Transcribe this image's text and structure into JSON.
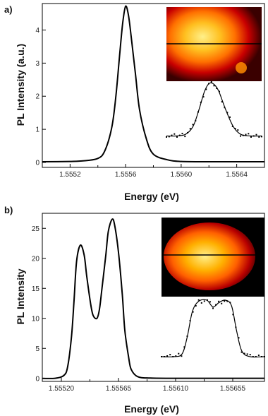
{
  "chart_data": [
    {
      "panel_label": "a)",
      "type": "line",
      "xlabel": "Energy (eV)",
      "ylabel": "PL Intensity (a.u.)",
      "xlim": [
        1.555,
        1.5566
      ],
      "ylim": [
        -0.15,
        4.8
      ],
      "xticks": [
        1.5552,
        1.5556,
        1.556,
        1.5564
      ],
      "xtick_labels": [
        "1.5552",
        "1.5556",
        "1.5560",
        "1.5564"
      ],
      "yticks": [
        0,
        1,
        2,
        3,
        4
      ],
      "ytick_labels": [
        "0",
        "1",
        "2",
        "3",
        "4"
      ],
      "series": [
        {
          "x": [
            1.555,
            1.5552,
            1.5553,
            1.5554,
            1.55545,
            1.5555,
            1.55553,
            1.55556,
            1.55558,
            1.5556,
            1.55562,
            1.55564,
            1.55567,
            1.5557,
            1.55575,
            1.5558,
            1.5559,
            1.556,
            1.5562,
            1.5564,
            1.5566
          ],
          "y": [
            0.02,
            0.03,
            0.05,
            0.12,
            0.35,
            1.05,
            2.0,
            3.4,
            4.25,
            4.72,
            4.45,
            3.8,
            2.7,
            1.6,
            0.7,
            0.25,
            0.08,
            0.03,
            0.02,
            0.02,
            0.02
          ]
        }
      ],
      "inset_image": {
        "description_colors": [
          "#000000",
          "#7a0000",
          "#e00000",
          "#ff9000",
          "#ffee70"
        ]
      },
      "inset_profile": {
        "fit": [
          [
            0.0,
            0.02
          ],
          [
            0.1,
            0.02
          ],
          [
            0.2,
            0.05
          ],
          [
            0.28,
            0.2
          ],
          [
            0.34,
            0.5
          ],
          [
            0.4,
            0.85
          ],
          [
            0.45,
            1.0
          ],
          [
            0.5,
            0.98
          ],
          [
            0.55,
            0.85
          ],
          [
            0.62,
            0.52
          ],
          [
            0.7,
            0.2
          ],
          [
            0.78,
            0.05
          ],
          [
            0.88,
            0.02
          ],
          [
            1.0,
            0.02
          ]
        ]
      }
    },
    {
      "panel_label": "b)",
      "type": "line",
      "xlabel": "Energy (eV)",
      "ylabel": "PL Intensity",
      "xlim": [
        1.55505,
        1.5568
      ],
      "ylim": [
        -0.5,
        27.5
      ],
      "xticks": [
        1.5552,
        1.55565,
        1.5561,
        1.55655
      ],
      "xtick_labels": [
        "1.55520",
        "1.55565",
        "1.55610",
        "1.55655"
      ],
      "yticks": [
        0,
        5,
        10,
        15,
        20,
        25
      ],
      "ytick_labels": [
        "0",
        "5",
        "10",
        "15",
        "20",
        "25"
      ],
      "series": [
        {
          "x": [
            1.55505,
            1.55515,
            1.55522,
            1.55525,
            1.55528,
            1.5553,
            1.55532,
            1.55535,
            1.55538,
            1.5554,
            1.55543,
            1.55545,
            1.55548,
            1.5555,
            1.55552,
            1.55555,
            1.55557,
            1.5556,
            1.55562,
            1.55565,
            1.55568,
            1.5557,
            1.55573,
            1.55575,
            1.5558,
            1.5559,
            1.5561,
            1.5564,
            1.5568
          ],
          "y": [
            0.0,
            0.02,
            0.5,
            2.0,
            7.0,
            13.0,
            19.5,
            22.2,
            20.5,
            17.0,
            12.5,
            10.5,
            10.0,
            11.5,
            15.0,
            20.5,
            24.5,
            26.5,
            25.5,
            21.0,
            14.0,
            8.0,
            3.5,
            1.5,
            0.3,
            0.05,
            0.02,
            0.02,
            0.02
          ]
        }
      ],
      "inset_image": {
        "description_colors": [
          "#000000",
          "#7a0000",
          "#e00000",
          "#ff9000",
          "#ffee70"
        ]
      },
      "inset_profile": {
        "fit": [
          [
            0.0,
            0.0
          ],
          [
            0.12,
            0.0
          ],
          [
            0.2,
            0.05
          ],
          [
            0.25,
            0.35
          ],
          [
            0.3,
            0.8
          ],
          [
            0.36,
            0.98
          ],
          [
            0.44,
            1.0
          ],
          [
            0.5,
            0.88
          ],
          [
            0.56,
            0.96
          ],
          [
            0.62,
            1.0
          ],
          [
            0.68,
            0.9
          ],
          [
            0.73,
            0.45
          ],
          [
            0.78,
            0.1
          ],
          [
            0.86,
            0.0
          ],
          [
            1.0,
            0.0
          ]
        ]
      }
    }
  ]
}
